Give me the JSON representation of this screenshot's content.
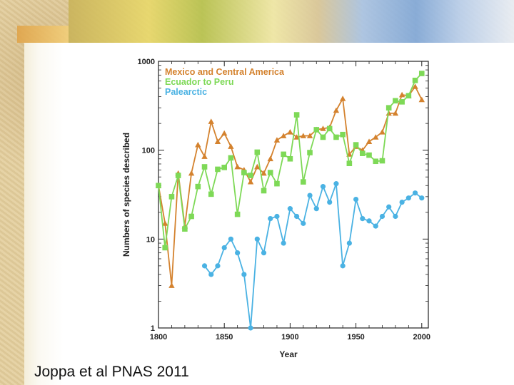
{
  "slide": {
    "citation": "Joppa et al PNAS 2011"
  },
  "chart_data": {
    "type": "line",
    "title": "",
    "xlabel": "Year",
    "ylabel": "Numbers of species described",
    "xlim": [
      1800,
      2005
    ],
    "ylim": [
      1,
      1000
    ],
    "yscale": "log",
    "x_ticks": [
      "1800",
      "1850",
      "1900",
      "1950",
      "2000"
    ],
    "y_ticks": [
      "1",
      "10",
      "100",
      "1000"
    ],
    "grid": false,
    "legend_position": "top-left",
    "series": [
      {
        "name": "Mexico and Central America",
        "color": "#d4822e",
        "marker": "triangle",
        "x": [
          1800,
          1805,
          1810,
          1815,
          1820,
          1825,
          1830,
          1835,
          1840,
          1845,
          1850,
          1855,
          1860,
          1865,
          1870,
          1875,
          1880,
          1885,
          1890,
          1895,
          1900,
          1905,
          1910,
          1915,
          1920,
          1925,
          1930,
          1935,
          1940,
          1945,
          1950,
          1955,
          1960,
          1965,
          1970,
          1975,
          1980,
          1985,
          1990,
          1995,
          2000
        ],
        "y": [
          40,
          15,
          3,
          55,
          14,
          55,
          115,
          85,
          210,
          125,
          155,
          110,
          65,
          60,
          44,
          65,
          55,
          80,
          130,
          145,
          160,
          140,
          145,
          145,
          170,
          175,
          180,
          280,
          380,
          90,
          110,
          100,
          125,
          140,
          160,
          260,
          260,
          420,
          410,
          520,
          370
        ]
      },
      {
        "name": "Ecuador to Peru",
        "color": "#7ed957",
        "marker": "square",
        "x": [
          1800,
          1805,
          1810,
          1815,
          1820,
          1825,
          1830,
          1835,
          1840,
          1845,
          1850,
          1855,
          1860,
          1865,
          1870,
          1875,
          1880,
          1885,
          1890,
          1895,
          1900,
          1905,
          1910,
          1915,
          1920,
          1925,
          1930,
          1935,
          1940,
          1945,
          1950,
          1955,
          1960,
          1965,
          1970,
          1975,
          1980,
          1985,
          1990,
          1995,
          2000
        ],
        "y": [
          40,
          8,
          30,
          52,
          13,
          18,
          39,
          65,
          32,
          61,
          64,
          82,
          19,
          56,
          52,
          95,
          35,
          56,
          42,
          90,
          80,
          250,
          44,
          94,
          170,
          140,
          175,
          140,
          150,
          71,
          115,
          92,
          88,
          75,
          76,
          300,
          360,
          350,
          410,
          610,
          730
        ]
      },
      {
        "name": "Palearctic",
        "color": "#4ab2e3",
        "marker": "circle",
        "x": [
          1835,
          1840,
          1845,
          1850,
          1855,
          1860,
          1865,
          1870,
          1875,
          1880,
          1885,
          1890,
          1895,
          1900,
          1905,
          1910,
          1915,
          1920,
          1925,
          1930,
          1935,
          1940,
          1945,
          1950,
          1955,
          1960,
          1965,
          1970,
          1975,
          1980,
          1985,
          1990,
          1995,
          2000
        ],
        "y": [
          5,
          4,
          5,
          8,
          10,
          7,
          4,
          1,
          10,
          7,
          17,
          18,
          9,
          22,
          18,
          15,
          31,
          22,
          39,
          26,
          42,
          5,
          9,
          28,
          17,
          16,
          14,
          18,
          23,
          18,
          26,
          29,
          33,
          29
        ]
      }
    ]
  }
}
